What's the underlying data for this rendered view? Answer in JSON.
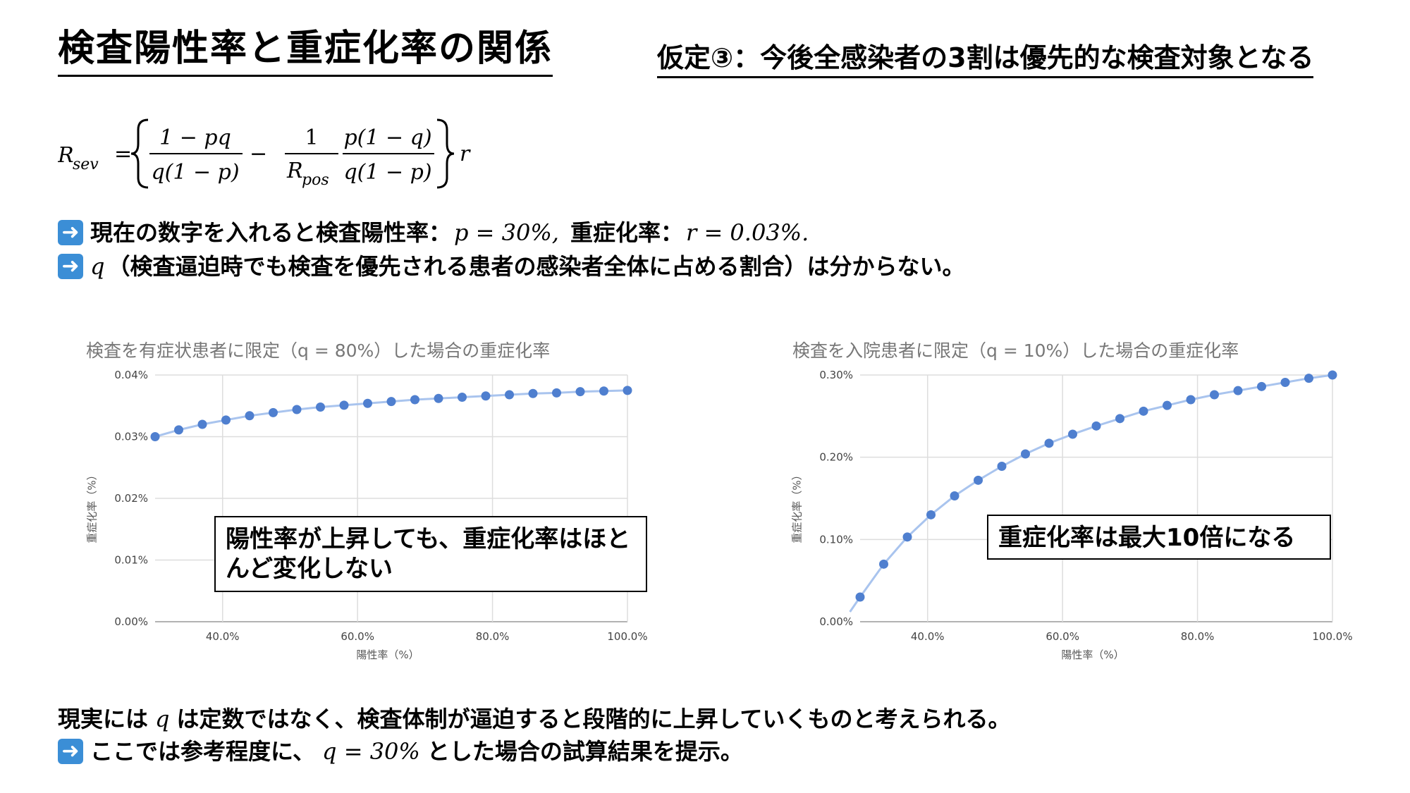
{
  "header": {
    "title": "検査陽性率と重症化率の関係",
    "assumption": "仮定③：今後全感染者の3割は優先的な検査対象となる"
  },
  "formula": {
    "lhs": "R",
    "lhs_sub": "sev",
    "num1": "1 − pq",
    "den1": "q(1 − p)",
    "num2": "1",
    "den2": "R",
    "den2_sub": "pos",
    "num3": "p(1 − q)",
    "den3": "q(1 − p)",
    "rhs": "r"
  },
  "notes": {
    "line1_text": "現在の数字を入れると検査陽性率：",
    "line1_p": "p = 30%,",
    "line1_text2": "重症化率：",
    "line1_r": "r = 0.03%.",
    "line2_q": "q",
    "line2_text": "（検査逼迫時でも検査を優先される患者の感染者全体に占める割合）は分からない。",
    "footer1_a": "現実には",
    "footer1_q": "q",
    "footer1_b": "は定数ではなく、検査体制が逼迫すると段階的に上昇していくものと考えられる。",
    "footer2_a": "ここでは参考程度に、",
    "footer2_q": "q = 30%",
    "footer2_b": "とした場合の試算結果を提示。",
    "arrow_icon": "right-arrow-icon"
  },
  "chart_data": [
    {
      "type": "line",
      "title": "検査を有症状患者に限定（q = 80%）した場合の重症化率",
      "xlabel": "陽性率（%）",
      "ylabel": "重症化率（%）",
      "x_ticks": [
        "40.0%",
        "60.0%",
        "80.0%",
        "100.0%"
      ],
      "y_ticks": [
        "0.00%",
        "0.01%",
        "0.02%",
        "0.03%",
        "0.04%"
      ],
      "xlim": [
        30,
        100
      ],
      "ylim": [
        0,
        0.04
      ],
      "x": [
        30,
        33.5,
        37,
        40.5,
        44,
        47.5,
        51,
        54.5,
        58,
        61.5,
        65,
        68.5,
        72,
        75.5,
        79,
        82.5,
        86,
        89.5,
        93,
        96.5,
        100
      ],
      "series": [
        {
          "values": [
            0.03,
            0.0311,
            0.032,
            0.0327,
            0.0334,
            0.0339,
            0.0344,
            0.0348,
            0.0351,
            0.0354,
            0.0357,
            0.036,
            0.0362,
            0.0364,
            0.0366,
            0.0368,
            0.037,
            0.0371,
            0.0373,
            0.0374,
            0.0375
          ]
        }
      ],
      "grid": true,
      "color": "#4f7fcf",
      "line_color": "#a9c4ee",
      "callout": "陽性率が上昇しても、重症化率はほとんど変化しない"
    },
    {
      "type": "line",
      "title": "検査を入院患者に限定（q = 10%）した場合の重症化率",
      "xlabel": "陽性率（%）",
      "ylabel": "重症化率（%）",
      "x_ticks": [
        "40.0%",
        "60.0%",
        "80.0%",
        "100.0%"
      ],
      "y_ticks": [
        "0.00%",
        "0.10%",
        "0.20%",
        "0.30%"
      ],
      "xlim": [
        30,
        100
      ],
      "ylim": [
        0,
        0.3
      ],
      "x": [
        30,
        33.5,
        37,
        40.5,
        44,
        47.5,
        51,
        54.5,
        58,
        61.5,
        65,
        68.5,
        72,
        75.5,
        79,
        82.5,
        86,
        89.5,
        93,
        96.5,
        100
      ],
      "series": [
        {
          "values": [
            0.03,
            0.07,
            0.103,
            0.13,
            0.153,
            0.172,
            0.189,
            0.204,
            0.217,
            0.228,
            0.238,
            0.247,
            0.256,
            0.263,
            0.27,
            0.276,
            0.281,
            0.286,
            0.291,
            0.296,
            0.3
          ]
        }
      ],
      "grid": true,
      "color": "#4f7fcf",
      "line_color": "#a9c4ee",
      "callout": "重症化率は最大10倍になる"
    }
  ]
}
